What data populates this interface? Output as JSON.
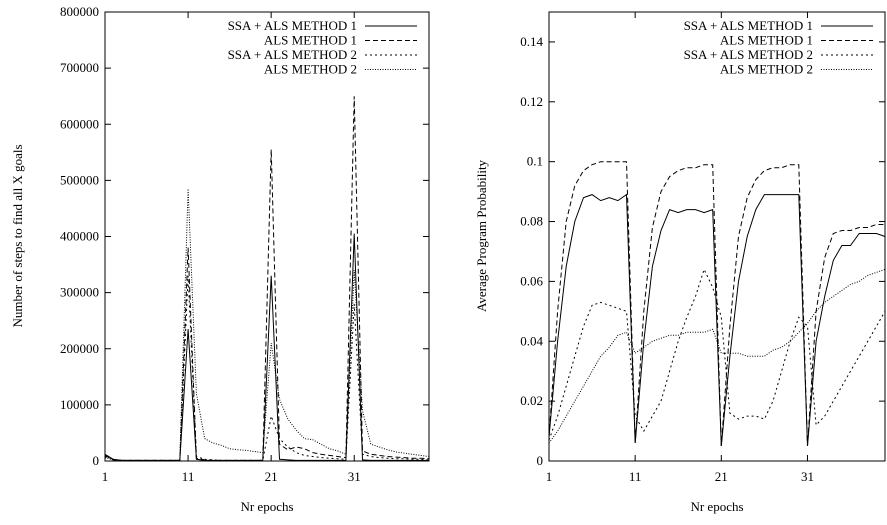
{
  "chart_data": [
    {
      "type": "line",
      "xlabel": "Nr epochs",
      "ylabel": "Number of steps to find all X goals",
      "xlim": [
        1,
        40
      ],
      "ylim": [
        0,
        800000
      ],
      "x_ticks": [
        1,
        11,
        21,
        31
      ],
      "y_ticks": [
        0,
        100000,
        200000,
        300000,
        400000,
        500000,
        600000,
        700000,
        800000
      ],
      "legend_position": "top-right",
      "series": [
        {
          "name": "SSA + ALS METHOD 1",
          "dash": "solid",
          "x": [
            1,
            2,
            3,
            4,
            5,
            6,
            7,
            8,
            9,
            10,
            11,
            12,
            13,
            14,
            15,
            16,
            17,
            18,
            19,
            20,
            21,
            22,
            23,
            24,
            25,
            26,
            27,
            28,
            29,
            30,
            31,
            32,
            33,
            34,
            35,
            36,
            37,
            38,
            39,
            40
          ],
          "values": [
            12000,
            3000,
            1000,
            1000,
            1000,
            1000,
            1000,
            1000,
            1000,
            1000,
            235000,
            3000,
            1000,
            1000,
            1000,
            1000,
            1000,
            1000,
            1000,
            1000,
            330000,
            3000,
            2000,
            1000,
            1000,
            1000,
            1000,
            1000,
            1000,
            1000,
            405000,
            2000,
            1000,
            1000,
            1000,
            1000,
            1000,
            1000,
            1000,
            1000
          ]
        },
        {
          "name": "ALS METHOD 1",
          "dash": "dashed",
          "x": [
            1,
            2,
            3,
            4,
            5,
            6,
            7,
            8,
            9,
            10,
            11,
            12,
            13,
            14,
            15,
            16,
            17,
            18,
            19,
            20,
            21,
            22,
            23,
            24,
            25,
            26,
            27,
            28,
            29,
            30,
            31,
            32,
            33,
            34,
            35,
            36,
            37,
            38,
            39,
            40
          ],
          "values": [
            10000,
            2000,
            1000,
            1000,
            1000,
            1000,
            1000,
            1000,
            1000,
            1000,
            380000,
            5000,
            2000,
            1000,
            1000,
            1000,
            1000,
            1000,
            1000,
            1000,
            555000,
            30000,
            20000,
            25000,
            22000,
            15000,
            12000,
            10000,
            8000,
            6000,
            650000,
            18000,
            12000,
            10000,
            8000,
            7000,
            6000,
            5000,
            5000,
            4000
          ]
        },
        {
          "name": "SSA + ALS METHOD 2",
          "dash": "dotted",
          "x": [
            1,
            2,
            3,
            4,
            5,
            6,
            7,
            8,
            9,
            10,
            11,
            12,
            13,
            14,
            15,
            16,
            17,
            18,
            19,
            20,
            21,
            22,
            23,
            24,
            25,
            26,
            27,
            28,
            29,
            30,
            31,
            32,
            33,
            34,
            35,
            36,
            37,
            38,
            39,
            40
          ],
          "values": [
            8000,
            2000,
            1000,
            1000,
            1000,
            1000,
            1000,
            1000,
            1000,
            1000,
            330000,
            8000,
            3000,
            2000,
            1000,
            1000,
            1000,
            1000,
            1000,
            1000,
            80000,
            40000,
            25000,
            15000,
            10000,
            8000,
            6000,
            5000,
            4000,
            3000,
            280000,
            12000,
            8000,
            6000,
            5000,
            4000,
            4000,
            3000,
            3000,
            2000
          ]
        },
        {
          "name": "ALS METHOD 2",
          "dash": "densedot",
          "x": [
            1,
            2,
            3,
            4,
            5,
            6,
            7,
            8,
            9,
            10,
            11,
            12,
            13,
            14,
            15,
            16,
            17,
            18,
            19,
            20,
            21,
            22,
            23,
            24,
            25,
            26,
            27,
            28,
            29,
            30,
            31,
            32,
            33,
            34,
            35,
            36,
            37,
            38,
            39,
            40
          ],
          "values": [
            6000,
            2000,
            1000,
            1000,
            1000,
            1000,
            1000,
            1000,
            1000,
            1000,
            485000,
            120000,
            40000,
            32000,
            28000,
            22000,
            20000,
            19000,
            17000,
            15000,
            210000,
            110000,
            75000,
            55000,
            40000,
            38000,
            30000,
            22000,
            18000,
            12000,
            340000,
            90000,
            30000,
            25000,
            20000,
            16000,
            14000,
            12000,
            10000,
            8000
          ]
        }
      ]
    },
    {
      "type": "line",
      "xlabel": "Nr epochs",
      "ylabel": "Average Program Probability",
      "xlim": [
        1,
        40
      ],
      "ylim": [
        0,
        0.15
      ],
      "x_ticks": [
        1,
        11,
        21,
        31
      ],
      "y_ticks": [
        0,
        0.02,
        0.04,
        0.06,
        0.08,
        0.1,
        0.12,
        0.14
      ],
      "legend_position": "top-right",
      "series": [
        {
          "name": "SSA + ALS METHOD 1",
          "dash": "solid",
          "x": [
            1,
            2,
            3,
            4,
            5,
            6,
            7,
            8,
            9,
            10,
            11,
            12,
            13,
            14,
            15,
            16,
            17,
            18,
            19,
            20,
            21,
            22,
            23,
            24,
            25,
            26,
            27,
            28,
            29,
            30,
            31,
            32,
            33,
            34,
            35,
            36,
            37,
            38,
            39,
            40
          ],
          "values": [
            0.008,
            0.04,
            0.065,
            0.08,
            0.088,
            0.089,
            0.087,
            0.088,
            0.087,
            0.089,
            0.006,
            0.04,
            0.065,
            0.077,
            0.084,
            0.083,
            0.084,
            0.084,
            0.083,
            0.084,
            0.005,
            0.035,
            0.06,
            0.075,
            0.084,
            0.089,
            0.089,
            0.089,
            0.089,
            0.089,
            0.005,
            0.04,
            0.055,
            0.067,
            0.072,
            0.072,
            0.076,
            0.076,
            0.076,
            0.075
          ]
        },
        {
          "name": "ALS METHOD 1",
          "dash": "dashed",
          "x": [
            1,
            2,
            3,
            4,
            5,
            6,
            7,
            8,
            9,
            10,
            11,
            12,
            13,
            14,
            15,
            16,
            17,
            18,
            19,
            20,
            21,
            22,
            23,
            24,
            25,
            26,
            27,
            28,
            29,
            30,
            31,
            32,
            33,
            34,
            35,
            36,
            37,
            38,
            39,
            40
          ],
          "values": [
            0.008,
            0.05,
            0.08,
            0.092,
            0.097,
            0.099,
            0.1,
            0.1,
            0.1,
            0.1,
            0.006,
            0.05,
            0.078,
            0.09,
            0.095,
            0.097,
            0.098,
            0.098,
            0.099,
            0.099,
            0.005,
            0.045,
            0.075,
            0.088,
            0.094,
            0.097,
            0.098,
            0.098,
            0.099,
            0.099,
            0.005,
            0.05,
            0.068,
            0.076,
            0.077,
            0.077,
            0.078,
            0.078,
            0.079,
            0.079
          ]
        },
        {
          "name": "SSA + ALS METHOD 2",
          "dash": "dotted",
          "x": [
            1,
            2,
            3,
            4,
            5,
            6,
            7,
            8,
            9,
            10,
            11,
            12,
            13,
            14,
            15,
            16,
            17,
            18,
            19,
            20,
            21,
            22,
            23,
            24,
            25,
            26,
            27,
            28,
            29,
            30,
            31,
            32,
            33,
            34,
            35,
            36,
            37,
            38,
            39,
            40
          ],
          "values": [
            0.007,
            0.015,
            0.025,
            0.035,
            0.045,
            0.052,
            0.053,
            0.052,
            0.051,
            0.05,
            0.015,
            0.01,
            0.015,
            0.02,
            0.03,
            0.04,
            0.048,
            0.055,
            0.064,
            0.058,
            0.048,
            0.016,
            0.014,
            0.015,
            0.015,
            0.014,
            0.02,
            0.03,
            0.04,
            0.048,
            0.045,
            0.012,
            0.015,
            0.02,
            0.025,
            0.03,
            0.035,
            0.04,
            0.045,
            0.05
          ]
        },
        {
          "name": "ALS METHOD 2",
          "dash": "densedot",
          "x": [
            1,
            2,
            3,
            4,
            5,
            6,
            7,
            8,
            9,
            10,
            11,
            12,
            13,
            14,
            15,
            16,
            17,
            18,
            19,
            20,
            21,
            22,
            23,
            24,
            25,
            26,
            27,
            28,
            29,
            30,
            31,
            32,
            33,
            34,
            35,
            36,
            37,
            38,
            39,
            40
          ],
          "values": [
            0.006,
            0.01,
            0.015,
            0.02,
            0.025,
            0.03,
            0.035,
            0.038,
            0.042,
            0.043,
            0.036,
            0.038,
            0.04,
            0.041,
            0.042,
            0.042,
            0.043,
            0.043,
            0.043,
            0.044,
            0.036,
            0.036,
            0.036,
            0.035,
            0.035,
            0.035,
            0.037,
            0.038,
            0.04,
            0.043,
            0.046,
            0.05,
            0.053,
            0.055,
            0.057,
            0.059,
            0.06,
            0.062,
            0.063,
            0.064
          ]
        }
      ]
    }
  ]
}
